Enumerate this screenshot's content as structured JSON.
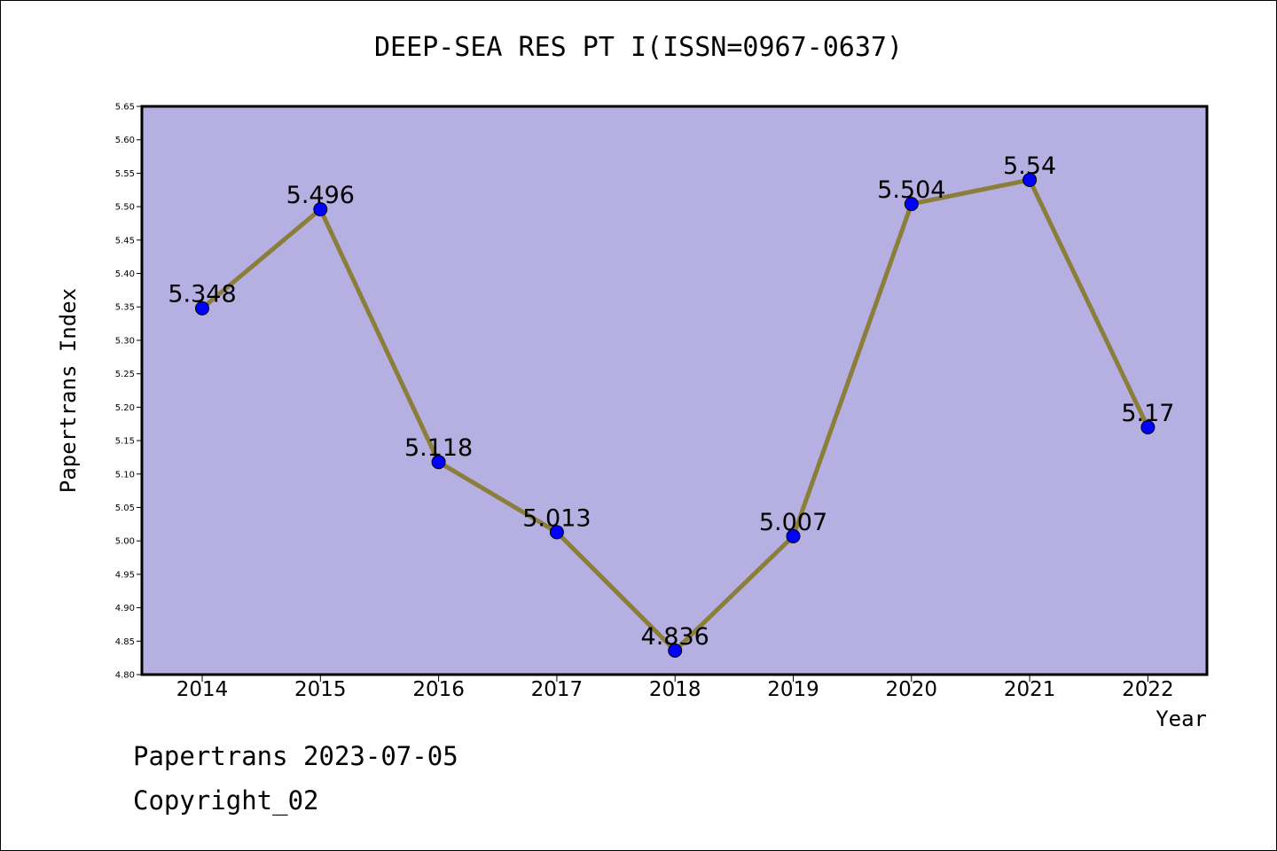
{
  "chart_data": {
    "type": "line",
    "title": "DEEP-SEA RES PT I(ISSN=0967-0637)",
    "xlabel": "Year",
    "ylabel": "Papertrans Index",
    "categories": [
      "2014",
      "2015",
      "2016",
      "2017",
      "2018",
      "2019",
      "2020",
      "2021",
      "2022"
    ],
    "series": [
      {
        "values": [
          5.348,
          5.496,
          5.118,
          5.013,
          4.836,
          5.007,
          5.504,
          5.54,
          5.17
        ],
        "labels": [
          "5.348",
          "5.496",
          "5.118",
          "5.013",
          "4.836",
          "5.007",
          "5.504",
          "5.54",
          "5.17"
        ]
      }
    ],
    "ylim": [
      4.8,
      5.65
    ],
    "yticks": [
      "4.80",
      "4.85",
      "4.90",
      "4.95",
      "5.00",
      "5.05",
      "5.10",
      "5.15",
      "5.20",
      "5.25",
      "5.30",
      "5.35",
      "5.40",
      "5.45",
      "5.50",
      "5.55",
      "5.60",
      "5.65"
    ],
    "grid": false,
    "colors": {
      "plot_background": "#b5afe2",
      "line": "#8b7d3a",
      "marker": "#0000ff"
    }
  },
  "footer": {
    "line1": "Papertrans 2023-07-05",
    "line2": "Copyright_02"
  }
}
